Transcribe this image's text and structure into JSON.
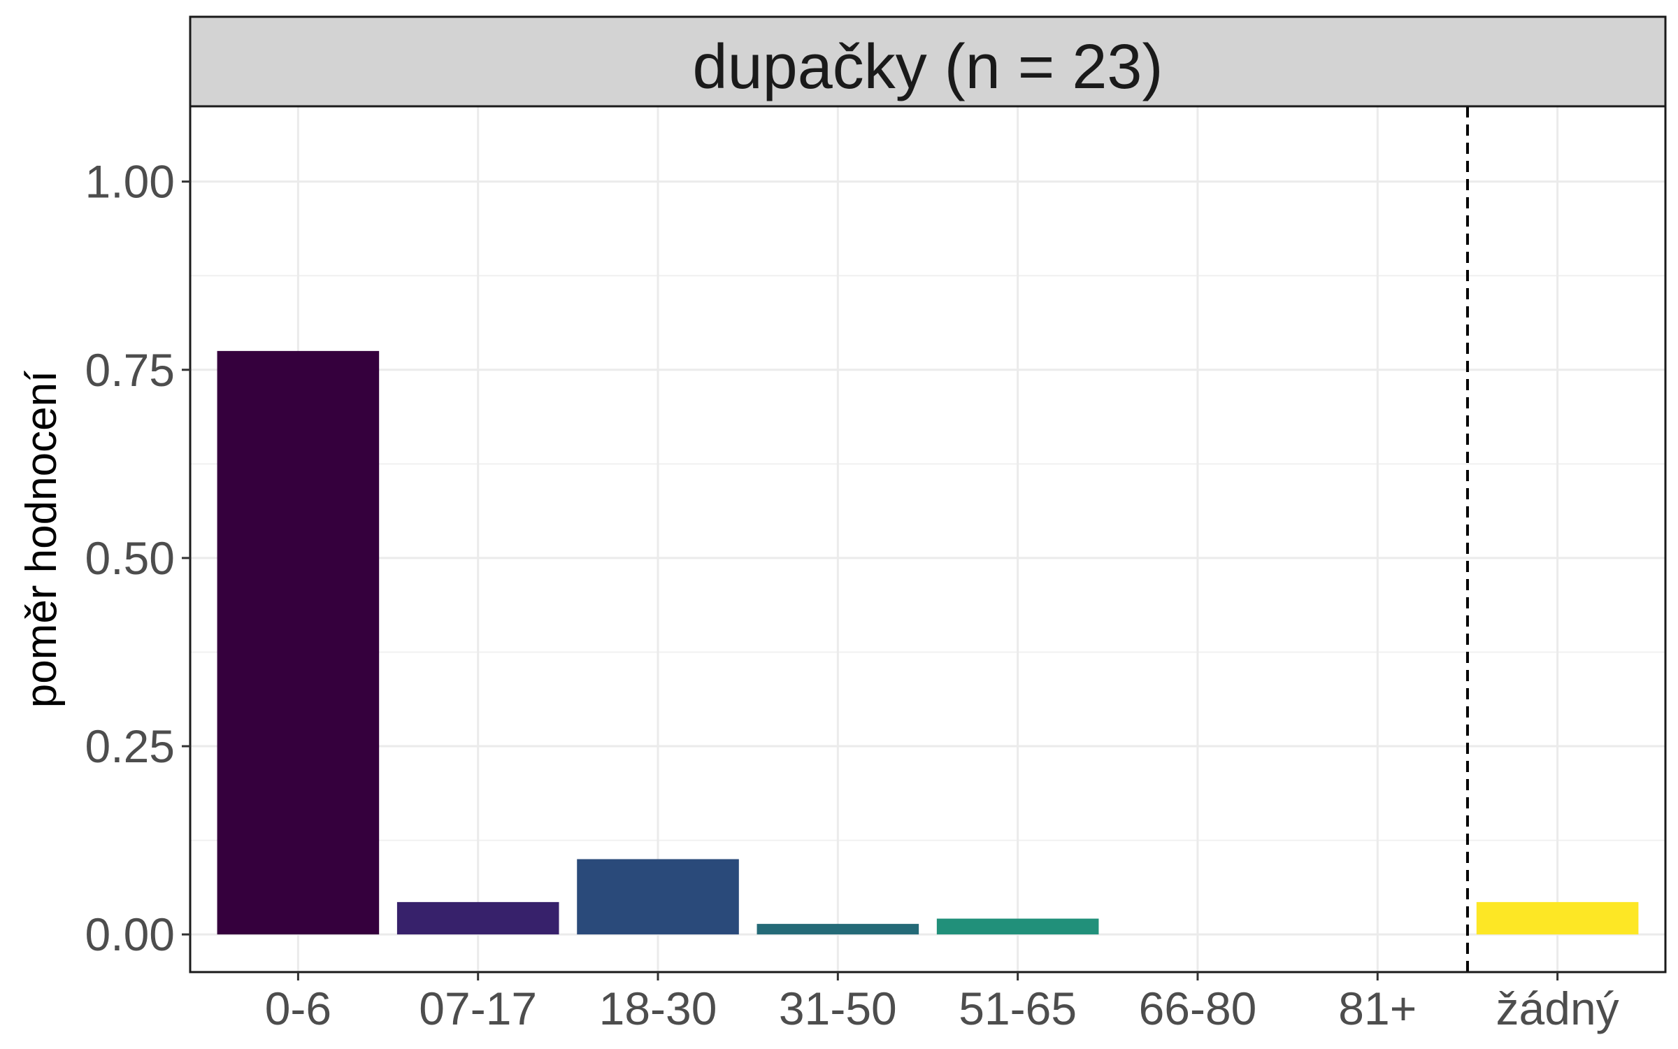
{
  "chart_data": {
    "type": "bar",
    "title": "dupačky (n = 23)",
    "xlabel": "",
    "ylabel": "poměr hodnocení",
    "categories": [
      "0-6",
      "07-17",
      "18-30",
      "31-50",
      "51-65",
      "66-80",
      "81+",
      "žádný"
    ],
    "values": [
      0.775,
      0.043,
      0.1,
      0.014,
      0.021,
      0,
      0,
      0.043
    ],
    "colors": [
      "#35003d",
      "#37216b",
      "#2a4a7a",
      "#246a77",
      "#21907a",
      "#4bbf66",
      "#a9d93b",
      "#fde725"
    ],
    "ylim": [
      -0.05,
      1.1
    ],
    "yticks": [
      0.0,
      0.25,
      0.5,
      0.75,
      1.0
    ],
    "ytick_labels": [
      "0.00",
      "0.25",
      "0.50",
      "0.75",
      "1.00"
    ],
    "grid": true,
    "separator": {
      "after_category": "81+",
      "style": "dashed"
    },
    "strip_color": "#d3d3d3"
  }
}
